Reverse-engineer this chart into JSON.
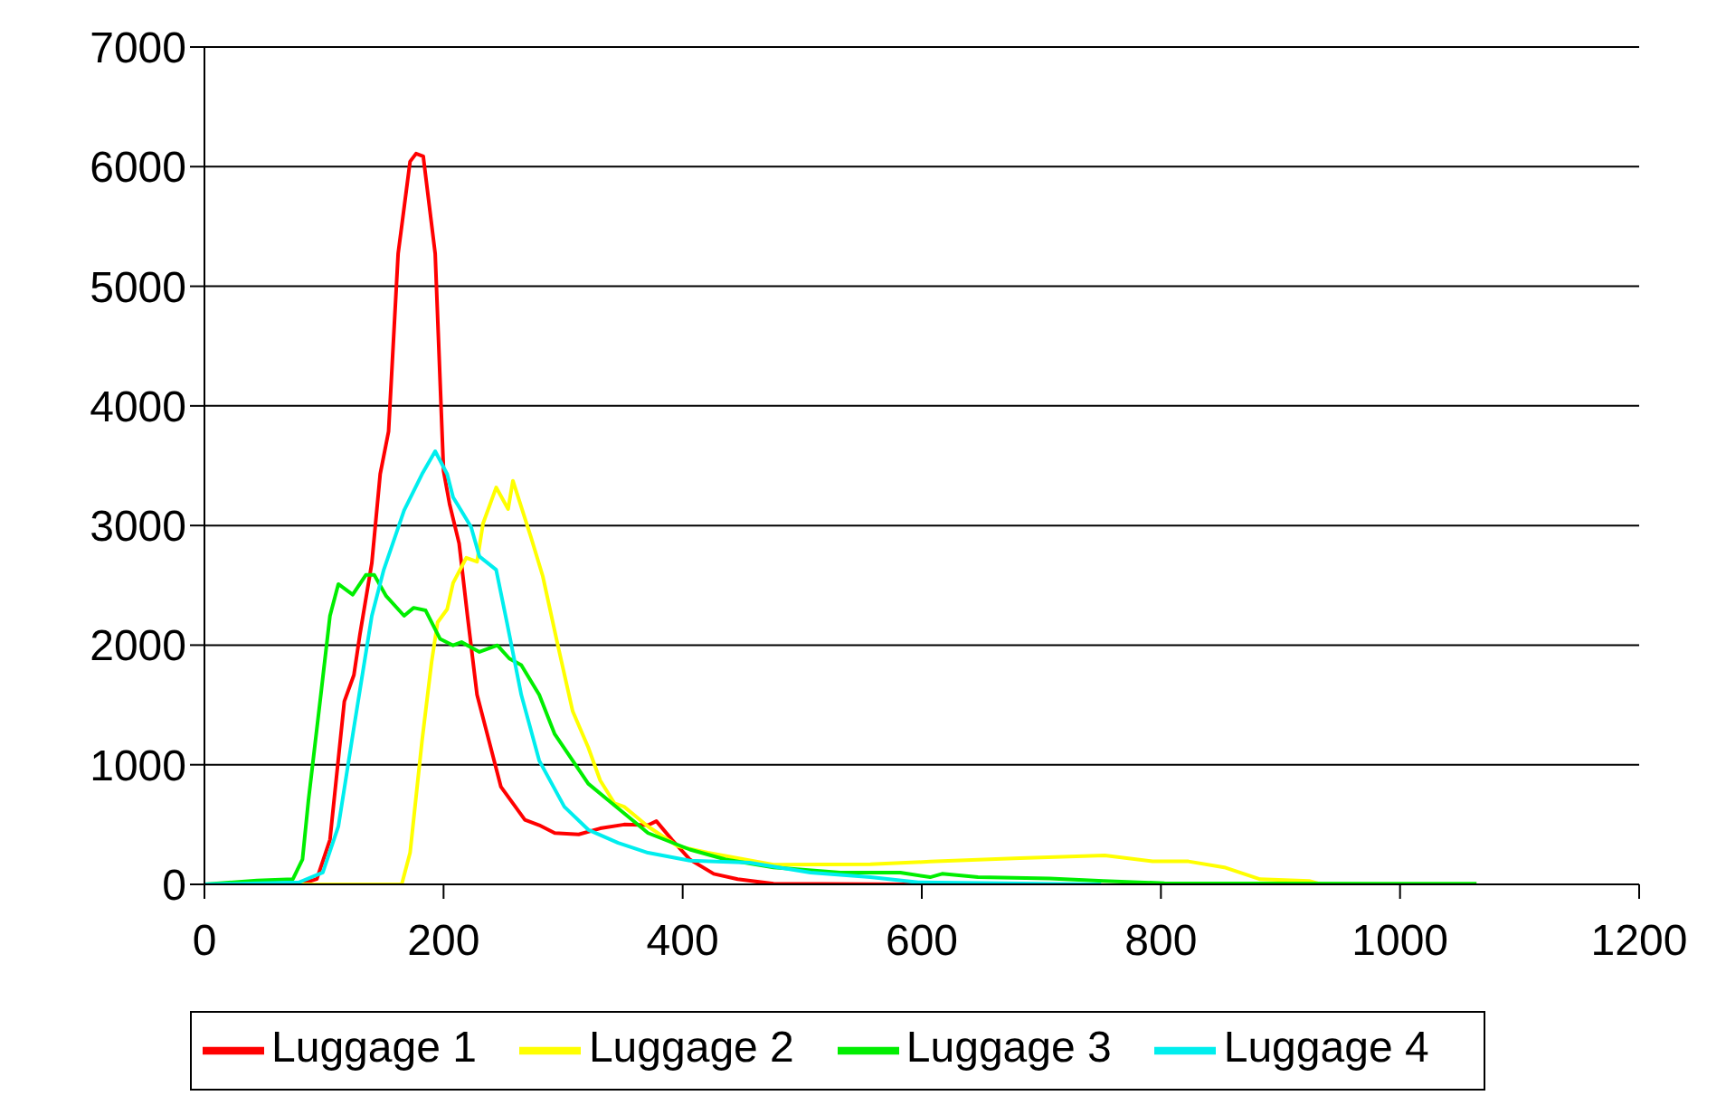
{
  "chart_data": {
    "type": "line",
    "xlim": [
      0,
      1200
    ],
    "xticks": [
      0,
      200,
      400,
      600,
      800,
      1000,
      1200
    ],
    "ylim": [
      0,
      7000
    ],
    "yticks": [
      0,
      1000,
      2000,
      3000,
      4000,
      5000,
      6000,
      7000
    ],
    "grid": "y",
    "legend": "bottom",
    "marker": "none",
    "series": [
      {
        "name": "Luggage 1",
        "color": "#ff0000",
        "x": [
          0,
          79,
          94,
          105,
          117,
          125,
          130,
          140,
          147,
          154,
          162,
          172,
          177,
          183,
          193,
          200,
          205,
          213,
          220,
          228,
          238,
          248,
          258,
          268,
          280,
          293,
          313,
          331,
          351,
          371,
          378,
          391,
          406,
          426,
          446,
          476,
          597,
          700
        ],
        "values": [
          0,
          0,
          44,
          374,
          1530,
          1750,
          2086,
          2686,
          3430,
          3786,
          5272,
          6043,
          6109,
          6087,
          5272,
          3456,
          3181,
          2851,
          2245,
          1585,
          1200,
          815,
          677,
          539,
          495,
          429,
          418,
          468,
          500,
          495,
          528,
          373,
          208,
          88,
          43,
          5,
          0,
          0
        ]
      },
      {
        "name": "Luggage 2",
        "color": "#ffff00",
        "x": [
          0,
          165,
          172,
          182,
          190,
          195,
          203,
          208,
          219,
          228,
          233,
          244,
          254,
          258,
          273,
          283,
          295,
          308,
          321,
          331,
          343,
          351,
          361,
          371,
          396,
          421,
          476,
          557,
          607,
          682,
          753,
          793,
          823,
          853,
          883,
          924,
          934
        ],
        "values": [
          0,
          0,
          264,
          1200,
          1860,
          2190,
          2300,
          2520,
          2730,
          2697,
          3016,
          3318,
          3137,
          3374,
          2906,
          2576,
          2025,
          1447,
          1145,
          869,
          677,
          649,
          567,
          484,
          319,
          264,
          165,
          168,
          190,
          220,
          242,
          192,
          192,
          142,
          43,
          28,
          0
        ]
      },
      {
        "name": "Luggage 3",
        "color": "#00ee00",
        "x": [
          0,
          44,
          74,
          82,
          87,
          98,
          105,
          112,
          124,
          135,
          142,
          152,
          167,
          175,
          185,
          197,
          208,
          215,
          230,
          245,
          255,
          265,
          280,
          293,
          308,
          321,
          341,
          361,
          371,
          406,
          436,
          476,
          532,
          582,
          607,
          617,
          647,
          707,
          752,
          803,
          1064
        ],
        "values": [
          0,
          33,
          44,
          209,
          704,
          1640,
          2245,
          2510,
          2422,
          2587,
          2587,
          2410,
          2245,
          2312,
          2290,
          2053,
          1998,
          2025,
          1943,
          1998,
          1888,
          1833,
          1585,
          1255,
          1035,
          842,
          677,
          512,
          429,
          291,
          208,
          142,
          99,
          99,
          60,
          88,
          60,
          50,
          28,
          10,
          5
        ]
      },
      {
        "name": "Luggage 4",
        "color": "#00eeee",
        "x": [
          0,
          79,
          99,
          112,
          125,
          140,
          150,
          167,
          182,
          193,
          203,
          208,
          223,
          230,
          244,
          253,
          265,
          280,
          301,
          321,
          346,
          371,
          406,
          456,
          507,
          557,
          597,
          750
        ],
        "values": [
          0,
          17,
          99,
          484,
          1310,
          2245,
          2630,
          3126,
          3430,
          3621,
          3430,
          3236,
          2988,
          2741,
          2630,
          2190,
          1585,
          1035,
          649,
          457,
          347,
          264,
          198,
          182,
          99,
          60,
          17,
          0
        ]
      }
    ]
  }
}
